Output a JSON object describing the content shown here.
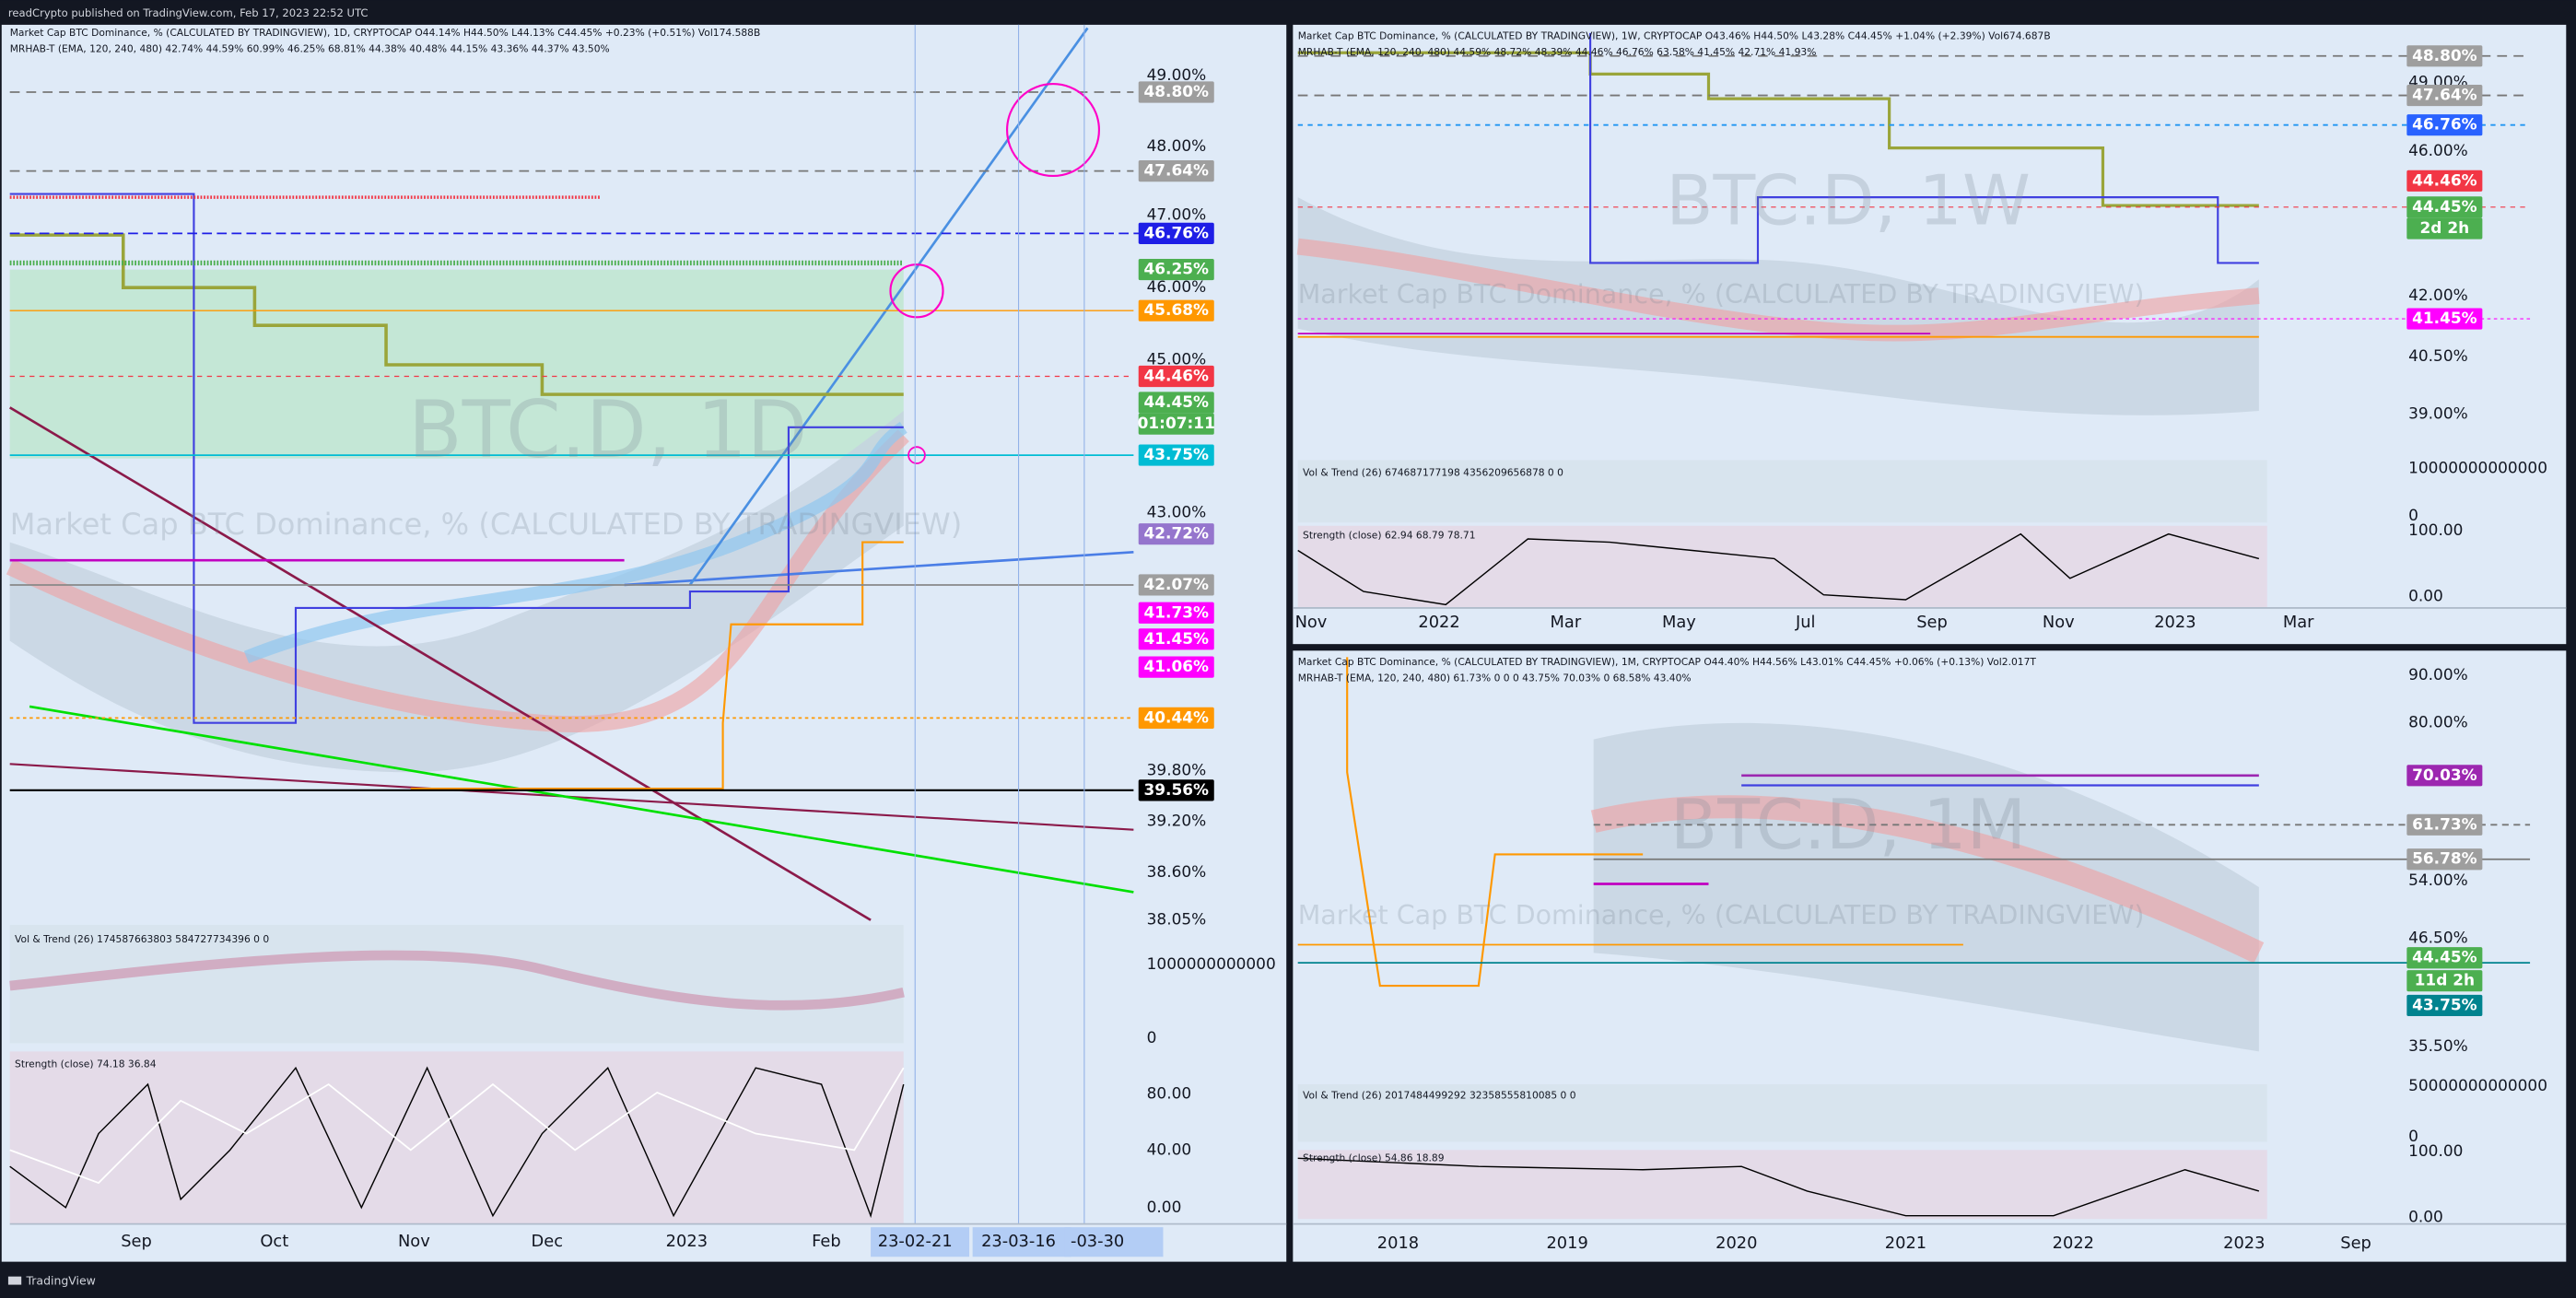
{
  "header": {
    "title": "readCrypto published on TradingView.com, Feb 17, 2023 22:52 UTC"
  },
  "footer": {
    "brand": "TradingView"
  },
  "panels": [
    {
      "legend": [
        "Market Cap BTC Dominance, % (CALCULATED BY TRADINGVIEW), 1D, CRYPTOCAP  O44.14% H44.50% L44.13% C44.45% +0.23% (+0.51%) Vol174.588B",
        "MRHAB-T (EMA, 120, 240, 480)  42.74% 44.59% 60.99% 46.25% 68.81% 44.38% 40.48% 44.15% 43.36% 44.37% 43.50%"
      ],
      "watermark": "BTC.D, 1D",
      "watermark_sub": "Market Cap BTC Dominance, % (CALCULATED BY TRADINGVIEW)",
      "price_axis": [
        "49.00%",
        "48.00%",
        "47.00%",
        "46.00%",
        "45.00%",
        "43.00%",
        "39.80%",
        "39.20%",
        "38.60%",
        "38.05%"
      ],
      "badges": [
        {
          "text": "48.80%",
          "color": "#9e9e9e"
        },
        {
          "text": "47.64%",
          "color": "#9e9e9e"
        },
        {
          "text": "46.76%",
          "color": "#1e1ee6"
        },
        {
          "text": "46.25%",
          "color": "#4caf50"
        },
        {
          "text": "45.68%",
          "color": "#ff9800"
        },
        {
          "text": "44.46%",
          "color": "#f23645"
        },
        {
          "text": "44.45%",
          "color": "#4caf50"
        },
        {
          "text": "01:07:11",
          "color": "#4caf50"
        },
        {
          "text": "43.75%",
          "color": "#00bcd4"
        },
        {
          "text": "42.72%",
          "color": "#9575cd"
        },
        {
          "text": "42.07%",
          "color": "#9e9e9e"
        },
        {
          "text": "41.73%",
          "color": "#ff00ff"
        },
        {
          "text": "41.45%",
          "color": "#ff00ff"
        },
        {
          "text": "41.06%",
          "color": "#ff00ff"
        },
        {
          "text": "40.44%",
          "color": "#ff9800"
        },
        {
          "text": "39.56%",
          "color": "#000000"
        }
      ],
      "time_axis": [
        "Sep",
        "Oct",
        "Nov",
        "Dec",
        "2023",
        "Feb"
      ],
      "time_badges": [
        "23-02-21",
        "23-03-16",
        "-03-30"
      ],
      "sub1": {
        "label": "Vol & Trend (26)  174587663803  584727734396  0  0",
        "axis": [
          "1000000000000",
          "0"
        ]
      },
      "sub2": {
        "label": "Strength (close)  74.18  36.84",
        "axis": [
          "80.00",
          "40.00",
          "0.00"
        ]
      }
    },
    {
      "legend": [
        "Market Cap BTC Dominance, % (CALCULATED BY TRADINGVIEW), 1W, CRYPTOCAP  O43.46% H44.50% L43.28% C44.45% +1.04% (+2.39%) Vol674.687B",
        "MRHAB-T (EMA, 120, 240, 480)  44.59% 48.72% 48.39% 44.46% 46.76% 63.58% 41.45% 42.71% 41.93%"
      ],
      "watermark": "BTC.D, 1W",
      "watermark_sub": "Market Cap BTC Dominance, % (CALCULATED BY TRADINGVIEW)",
      "price_axis": [
        "49.00%",
        "46.00%",
        "42.00%",
        "40.50%",
        "39.00%"
      ],
      "badges": [
        {
          "text": "48.80%",
          "color": "#9e9e9e"
        },
        {
          "text": "47.64%",
          "color": "#9e9e9e"
        },
        {
          "text": "46.76%",
          "color": "#2962ff"
        },
        {
          "text": "44.46%",
          "color": "#f23645"
        },
        {
          "text": "44.45%",
          "color": "#4caf50"
        },
        {
          "text": "2d 2h",
          "color": "#4caf50"
        },
        {
          "text": "41.45%",
          "color": "#ff00ff"
        }
      ],
      "time_axis": [
        "Nov",
        "2022",
        "Mar",
        "May",
        "Jul",
        "Sep",
        "Nov",
        "2023",
        "Mar"
      ],
      "time_badges": [],
      "sub1": {
        "label": "Vol & Trend (26)  674687177198  4356209656878  0  0",
        "axis": [
          "10000000000000",
          "0"
        ]
      },
      "sub2": {
        "label": "Strength (close)  62.94  68.79  78.71",
        "axis": [
          "100.00",
          "0.00"
        ]
      }
    },
    {
      "legend": [
        "Market Cap BTC Dominance, % (CALCULATED BY TRADINGVIEW), 1M, CRYPTOCAP  O44.40% H44.56% L43.01% C44.45% +0.06% (+0.13%) Vol2.017T",
        "MRHAB-T (EMA, 120, 240, 480)  61.73% 0 0 0 43.75% 70.03% 0 68.58% 43.40%"
      ],
      "watermark": "BTC.D, 1M",
      "watermark_sub": "Market Cap BTC Dominance, % (CALCULATED BY TRADINGVIEW)",
      "price_axis": [
        "90.00%",
        "80.00%",
        "54.00%",
        "46.50%",
        "35.50%"
      ],
      "badges": [
        {
          "text": "70.03%",
          "color": "#9c27b0"
        },
        {
          "text": "61.73%",
          "color": "#9e9e9e"
        },
        {
          "text": "56.78%",
          "color": "#9e9e9e"
        },
        {
          "text": "44.45%",
          "color": "#4caf50"
        },
        {
          "text": "11d 2h",
          "color": "#4caf50"
        },
        {
          "text": "43.75%",
          "color": "#00838f"
        }
      ],
      "time_axis": [
        "2018",
        "2019",
        "2020",
        "2021",
        "2022",
        "2023",
        "Sep"
      ],
      "time_badges": [],
      "sub1": {
        "label": "Vol & Trend (26)  2017484499292  32358555810085  0  0",
        "axis": [
          "50000000000000",
          "0"
        ]
      },
      "sub2": {
        "label": "Strength (close)  54.86  18.89",
        "axis": [
          "100.00",
          "0.00"
        ]
      }
    }
  ]
}
